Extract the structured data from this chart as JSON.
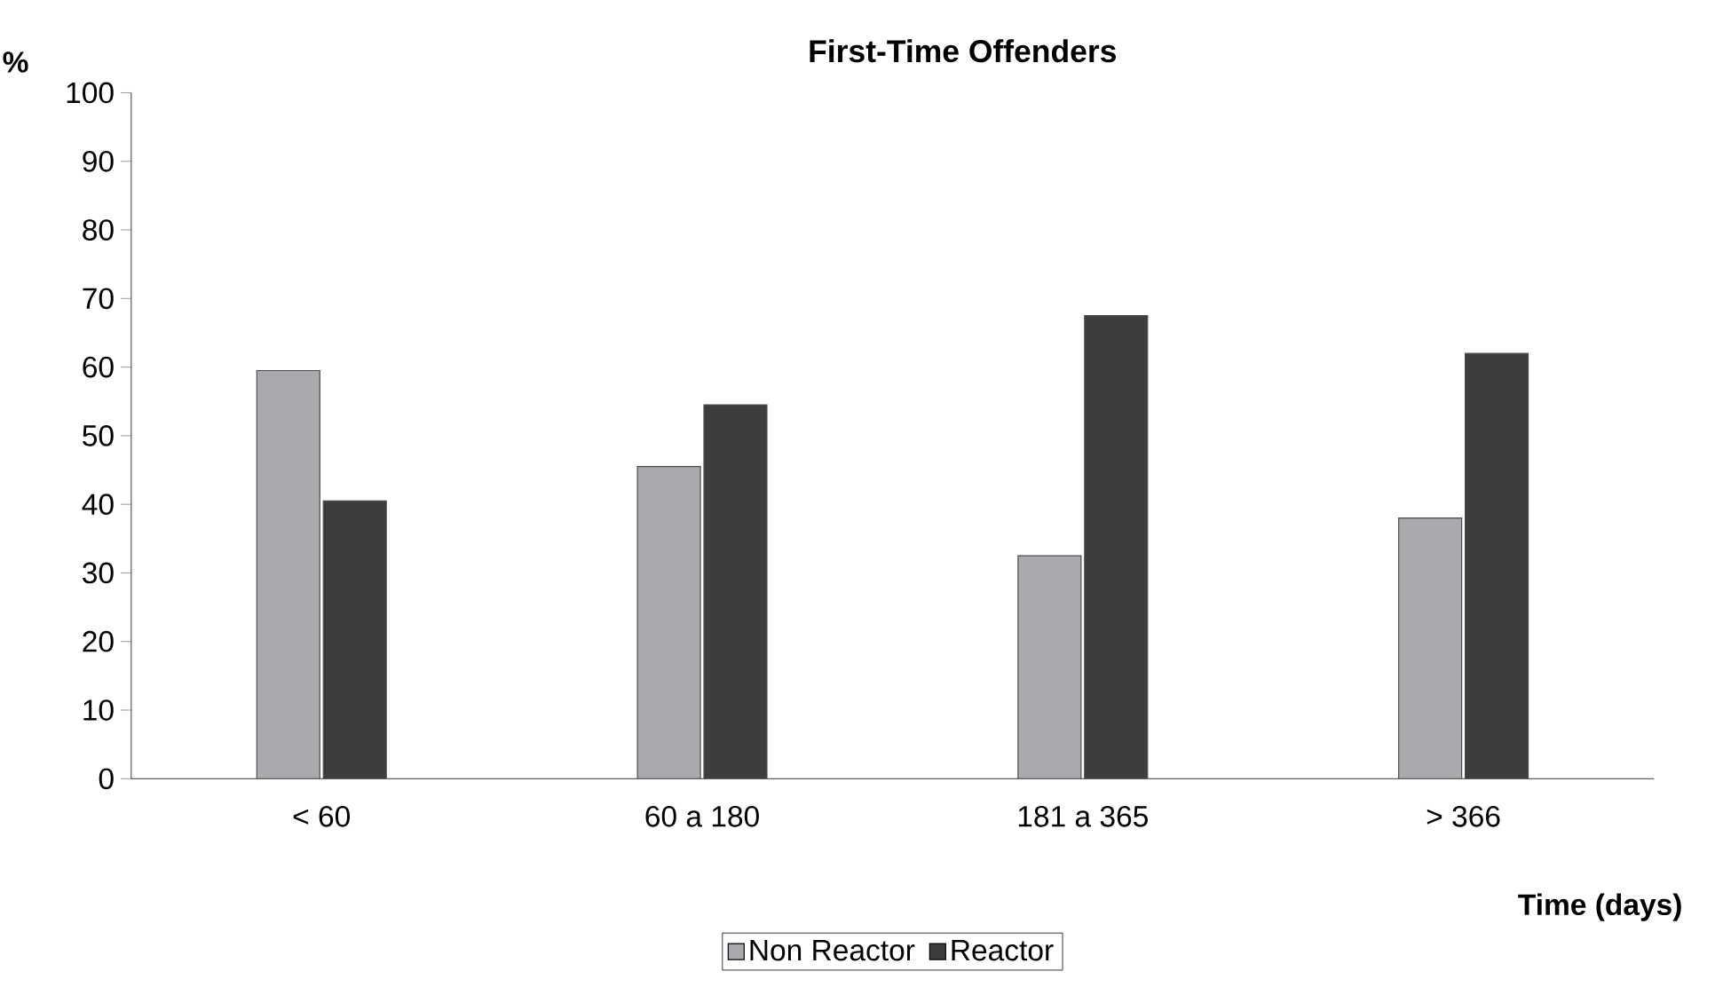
{
  "chart_data": {
    "type": "bar",
    "title": "First-Time Offenders",
    "xlabel": "Time (days)",
    "ylabel": "%",
    "categories": [
      "< 60",
      "60 a 180",
      "181 a 365",
      "> 366"
    ],
    "series": [
      {
        "name": "Non Reactor",
        "color": "#a9aaad",
        "values": [
          59.5,
          45.5,
          32.5,
          38
        ]
      },
      {
        "name": "Reactor",
        "color": "#3d3d3d",
        "values": [
          40.5,
          54.5,
          67.5,
          62
        ]
      }
    ],
    "ylim": [
      0,
      100
    ],
    "yticks": [
      0,
      10,
      20,
      30,
      40,
      50,
      60,
      70,
      80,
      90,
      100
    ],
    "grid": false,
    "legend": "bottom"
  }
}
